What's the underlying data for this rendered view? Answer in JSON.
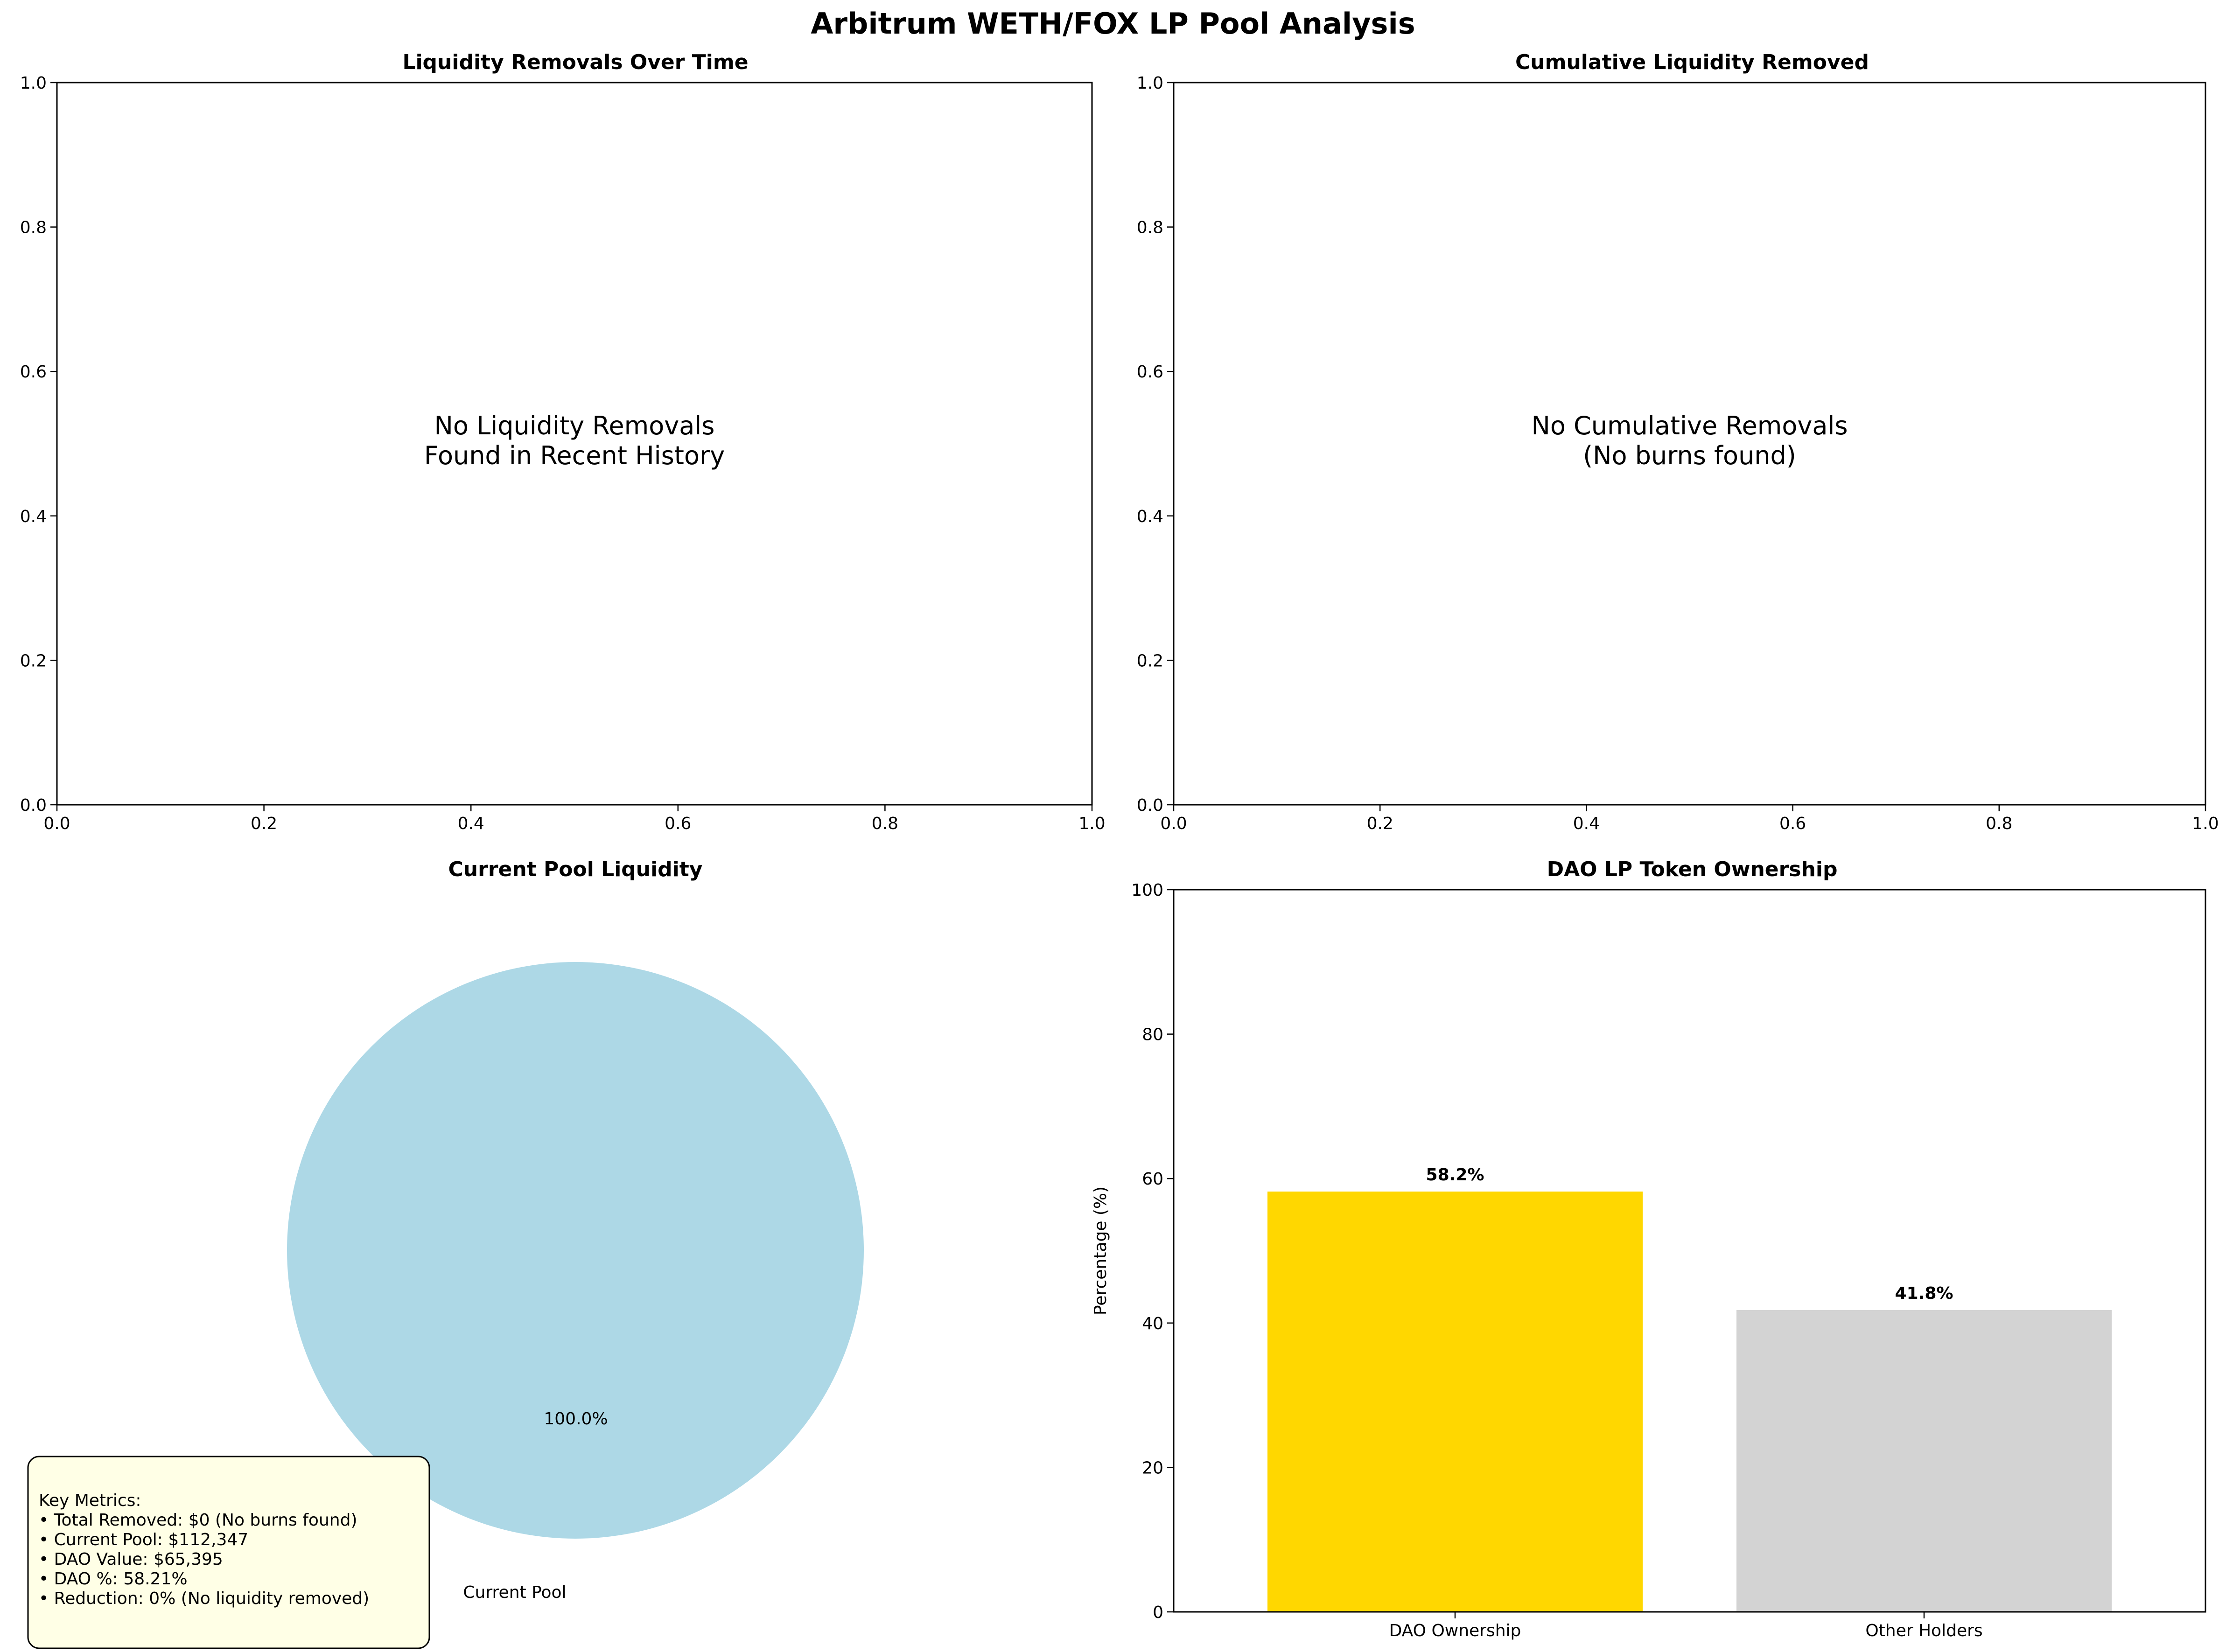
{
  "suptitle": "Arbitrum WETH/FOX LP Pool Analysis",
  "colors": {
    "pie_fill": "#ADD8E6",
    "dao_bar": "#FFD700",
    "other_bar": "#D3D3D3",
    "metrics_box_bg": "#FFFFE6"
  },
  "chart_data": [
    {
      "type": "line",
      "title": "Liquidity Removals Over Time",
      "xlabel": "",
      "ylabel": "",
      "xlim": [
        0,
        1
      ],
      "ylim": [
        0,
        1
      ],
      "xticks": [
        "0.0",
        "0.2",
        "0.4",
        "0.6",
        "0.8",
        "1.0"
      ],
      "yticks": [
        "0.0",
        "0.2",
        "0.4",
        "0.6",
        "0.8",
        "1.0"
      ],
      "series": [],
      "annotation": [
        "No Liquidity Removals",
        "Found in Recent History"
      ]
    },
    {
      "type": "line",
      "title": "Cumulative Liquidity Removed",
      "xlabel": "",
      "ylabel": "",
      "xlim": [
        0,
        1
      ],
      "ylim": [
        0,
        1
      ],
      "xticks": [
        "0.0",
        "0.2",
        "0.4",
        "0.6",
        "0.8",
        "1.0"
      ],
      "yticks": [
        "0.0",
        "0.2",
        "0.4",
        "0.6",
        "0.8",
        "1.0"
      ],
      "series": [],
      "annotation": [
        "No Cumulative Removals",
        "(No burns found)"
      ]
    },
    {
      "type": "pie",
      "title": "Current Pool Liquidity",
      "slices": [
        {
          "label": "Current Pool",
          "value": 100.0,
          "pct_label": "100.0%"
        }
      ]
    },
    {
      "type": "bar",
      "title": "DAO LP Token Ownership",
      "categories": [
        "DAO Ownership",
        "Other Holders"
      ],
      "values": [
        58.2,
        41.8
      ],
      "value_labels": [
        "58.2%",
        "41.8%"
      ],
      "xlabel": "",
      "ylabel": "Percentage (%)",
      "ylim": [
        0,
        100
      ],
      "yticks": [
        "0",
        "20",
        "40",
        "60",
        "80",
        "100"
      ]
    }
  ],
  "key_metrics": {
    "lines": [
      "Key Metrics:",
      "• Total Removed: $0 (No burns found)",
      "• Current Pool: $112,347",
      "• DAO Value: $65,395",
      "• DAO %: 58.21%",
      "• Reduction: 0% (No liquidity removed)"
    ]
  }
}
